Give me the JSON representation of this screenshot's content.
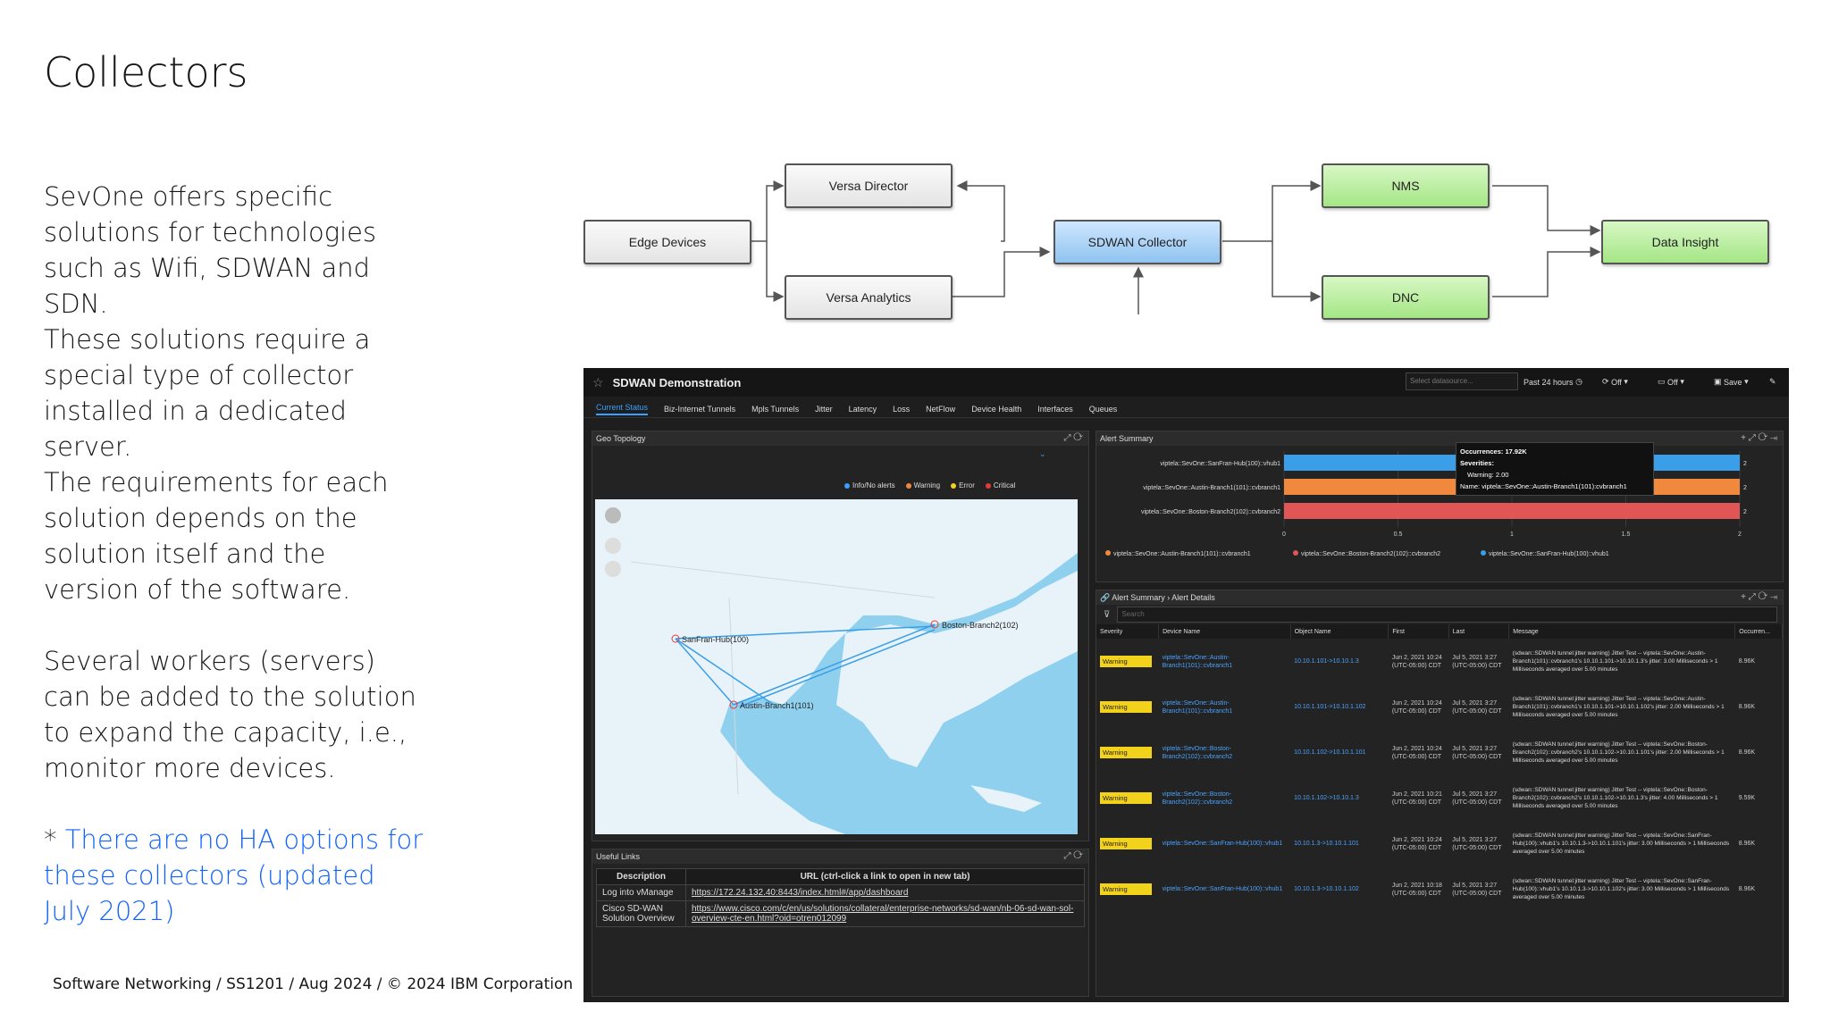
{
  "slide": {
    "title": "Collectors",
    "paragraphs": [
      "SevOne offers specific solutions for technologies such as Wifi, SDWAN and SDN.",
      "These solutions require a special type of collector installed in a dedicated server.",
      "The requirements for each solution depends on the solution itself and the version of the software.",
      "Several workers (servers) can be added to the solution to expand the capacity, i.e., monitor more devices."
    ],
    "note_prefix": "* ",
    "note_link": "There are no HA options for these collectors (updated July 2021)",
    "footer": "Software Networking / SS1201 / Aug 2024 / © 2024 IBM Corporation"
  },
  "diagram": {
    "edge_devices": "Edge Devices",
    "versa_director": "Versa Director",
    "versa_analytics": "Versa Analytics",
    "sdwan_collector": "SDWAN Collector",
    "nms": "NMS",
    "dnc": "DNC",
    "data_insight": "Data Insight"
  },
  "dashboard": {
    "title": "SDWAN Demonstration",
    "datasource_placeholder": "Select datasource...",
    "time_range": "Past 24 hours",
    "refresh": "Off",
    "tv": "Off",
    "save": "Save",
    "tabs": [
      "Current Status",
      "Biz-Internet Tunnels",
      "Mpls Tunnels",
      "Jitter",
      "Latency",
      "Loss",
      "NetFlow",
      "Device Health",
      "Interfaces",
      "Queues"
    ],
    "geo": {
      "header": "Geo Topology",
      "legend": [
        "Info/No alerts",
        "Warning",
        "Error",
        "Critical"
      ],
      "legend_colors": [
        "#3aa0ff",
        "#f0883e",
        "#f2d21b",
        "#e53935"
      ],
      "sites": [
        "SanFran-Hub(100)",
        "Austin-Branch1(101)",
        "Boston-Branch2(102)"
      ]
    },
    "alert_summary": {
      "header": "Alert Summary",
      "tooltip_occ": "Occurrences: 17.92K",
      "tooltip_sev": "Severities:",
      "tooltip_warn": "Warning: 2.00",
      "tooltip_name": "Name: viptela::SevOne::Austin-Branch1(101):cvbranch1"
    },
    "alert_details": {
      "crumb1": "Alert Summary",
      "crumb2": "Alert Details",
      "search_placeholder": "Search",
      "columns": [
        "Severity",
        "Device Name",
        "Object Name",
        "First",
        "Last",
        "Message",
        "Occurren..."
      ]
    },
    "useful_links": {
      "header": "Useful Links",
      "col_desc": "Description",
      "col_url": "URL (ctrl-click a link to open in new tab)",
      "rows": [
        {
          "desc": "Log into vManage",
          "url": "https://172.24.132.40:8443/index.html#/app/dashboard"
        },
        {
          "desc": "Cisco SD-WAN Solution Overview",
          "url": "https://www.cisco.com/c/en/us/solutions/collateral/enterprise-networks/sd-wan/nb-06-sd-wan-sol-overview-cte-en.html?oid=otren012099"
        }
      ]
    }
  },
  "chart_data": {
    "type": "bar",
    "orientation": "horizontal",
    "categories": [
      "viptela::SevOne::SanFran-Hub(100)::vhub1",
      "viptela::SevOne::Austin-Branch1(101)::cvbranch1",
      "viptela::SevOne::Boston-Branch2(102)::cvbranch2"
    ],
    "values": [
      2,
      2,
      2
    ],
    "value_labels": [
      "2",
      "2",
      "2"
    ],
    "colors": [
      "#3a9ee8",
      "#f0883e",
      "#e05656"
    ],
    "xlim": [
      0,
      2
    ],
    "xticks": [
      "0",
      "0.5",
      "1",
      "1.5",
      "2"
    ],
    "legend": [
      "viptela::SevOne::Austin-Branch1(101)::cvbranch1",
      "viptela::SevOne::Boston-Branch2(102)::cvbranch2",
      "viptela::SevOne::SanFran-Hub(100)::vhub1"
    ],
    "legend_colors": [
      "#f0883e",
      "#e05656",
      "#3a9ee8"
    ]
  },
  "alert_rows": [
    {
      "severity": "Warning",
      "device": "viptela::SevOne::Austin-Branch1(101)::cvbranch1",
      "object": "10.10.1.101->10.10.1.3",
      "first": "Jun 2, 2021 10:24 (UTC-05:00) CDT",
      "last": "Jul 5, 2021 3:27 (UTC-05:00) CDT",
      "message": "(sdwan::SDWAN tunnel:jitter warning) Jitter Test -- viptela::SevOne::Austin-Branch1(101)::cvbranch1's 10.10.1.101->10.10.1.3's jitter: 3.00 Milliseconds > 1 Milliseconds averaged over 5.00 minutes",
      "occ": "8.96K"
    },
    {
      "severity": "Warning",
      "device": "viptela::SevOne::Austin-Branch1(101)::cvbranch1",
      "object": "10.10.1.101->10.10.1.102",
      "first": "Jun 2, 2021 10:24 (UTC-05:00) CDT",
      "last": "Jul 5, 2021 3:27 (UTC-05:00) CDT",
      "message": "(sdwan::SDWAN tunnel:jitter warning) Jitter Test -- viptela::SevOne::Austin-Branch1(101)::cvbranch1's 10.10.1.101->10.10.1.102's jitter: 2.00 Milliseconds > 1 Milliseconds averaged over 5.00 minutes",
      "occ": "8.96K"
    },
    {
      "severity": "Warning",
      "device": "viptela::SevOne::Boston-Branch2(102)::cvbranch2",
      "object": "10.10.1.102->10.10.1.101",
      "first": "Jun 2, 2021 10:24 (UTC-05:00) CDT",
      "last": "Jul 5, 2021 3:27 (UTC-05:00) CDT",
      "message": "(sdwan::SDWAN tunnel:jitter warning) Jitter Test -- viptela::SevOne::Boston-Branch2(102)::cvbranch2's 10.10.1.102->10.10.1.101's jitter: 2.00 Milliseconds > 1 Milliseconds averaged over 5.00 minutes",
      "occ": "8.96K"
    },
    {
      "severity": "Warning",
      "device": "viptela::SevOne::Boston-Branch2(102)::cvbranch2",
      "object": "10.10.1.102->10.10.1.3",
      "first": "Jun 2, 2021 10:21 (UTC-05:00) CDT",
      "last": "Jul 5, 2021 3:27 (UTC-05:00) CDT",
      "message": "(sdwan::SDWAN tunnel:jitter warning) Jitter Test -- viptela::SevOne::Boston-Branch2(102)::cvbranch2's 10.10.1.102->10.10.1.3's jitter: 4.00 Milliseconds > 1 Milliseconds averaged over 5.00 minutes",
      "occ": "9.59K"
    },
    {
      "severity": "Warning",
      "device": "viptela::SevOne::SanFran-Hub(100)::vhub1",
      "object": "10.10.1.3->10.10.1.101",
      "first": "Jun 2, 2021 10:24 (UTC-05:00) CDT",
      "last": "Jul 5, 2021 3:27 (UTC-05:00) CDT",
      "message": "(sdwan::SDWAN tunnel:jitter warning) Jitter Test -- viptela::SevOne::SanFran-Hub(100)::vhub1's 10.10.1.3->10.10.1.101's jitter: 3.00 Milliseconds > 1 Milliseconds averaged over 5.00 minutes",
      "occ": "8.96K"
    },
    {
      "severity": "Warning",
      "device": "viptela::SevOne::SanFran-Hub(100)::vhub1",
      "object": "10.10.1.3->10.10.1.102",
      "first": "Jun 2, 2021 10:18 (UTC-05:00) CDT",
      "last": "Jul 5, 2021 3:27 (UTC-05:00) CDT",
      "message": "(sdwan::SDWAN tunnel:jitter warning) Jitter Test -- viptela::SevOne::SanFran-Hub(100)::vhub1's 10.10.1.3->10.10.1.102's jitter: 3.00 Milliseconds > 1 Milliseconds averaged over 5.00 minutes",
      "occ": "8.96K"
    }
  ]
}
